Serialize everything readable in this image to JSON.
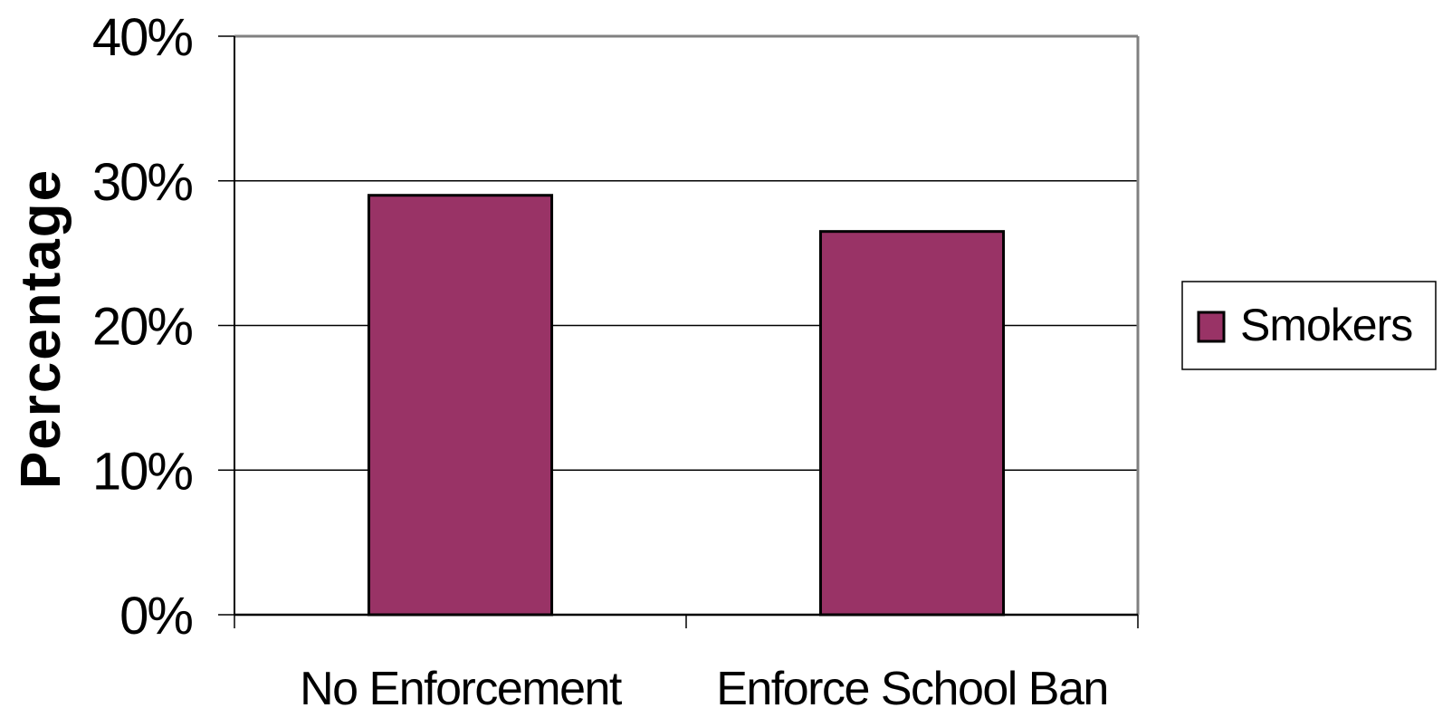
{
  "chart_data": {
    "type": "bar",
    "categories": [
      "No Enforcement",
      "Enforce School Ban"
    ],
    "series": [
      {
        "name": "Smokers",
        "values": [
          0.29,
          0.265
        ],
        "color": "#993366"
      }
    ],
    "ylabel": "Percentage",
    "xlabel": "",
    "ylim": [
      0,
      0.4
    ],
    "yticks": [
      0,
      0.1,
      0.2,
      0.3,
      0.4
    ],
    "ytick_labels": [
      "0%",
      "10%",
      "20%",
      "30%",
      "40%"
    ],
    "grid": true,
    "legend": {
      "position": "right",
      "entries": [
        "Smokers"
      ]
    }
  }
}
